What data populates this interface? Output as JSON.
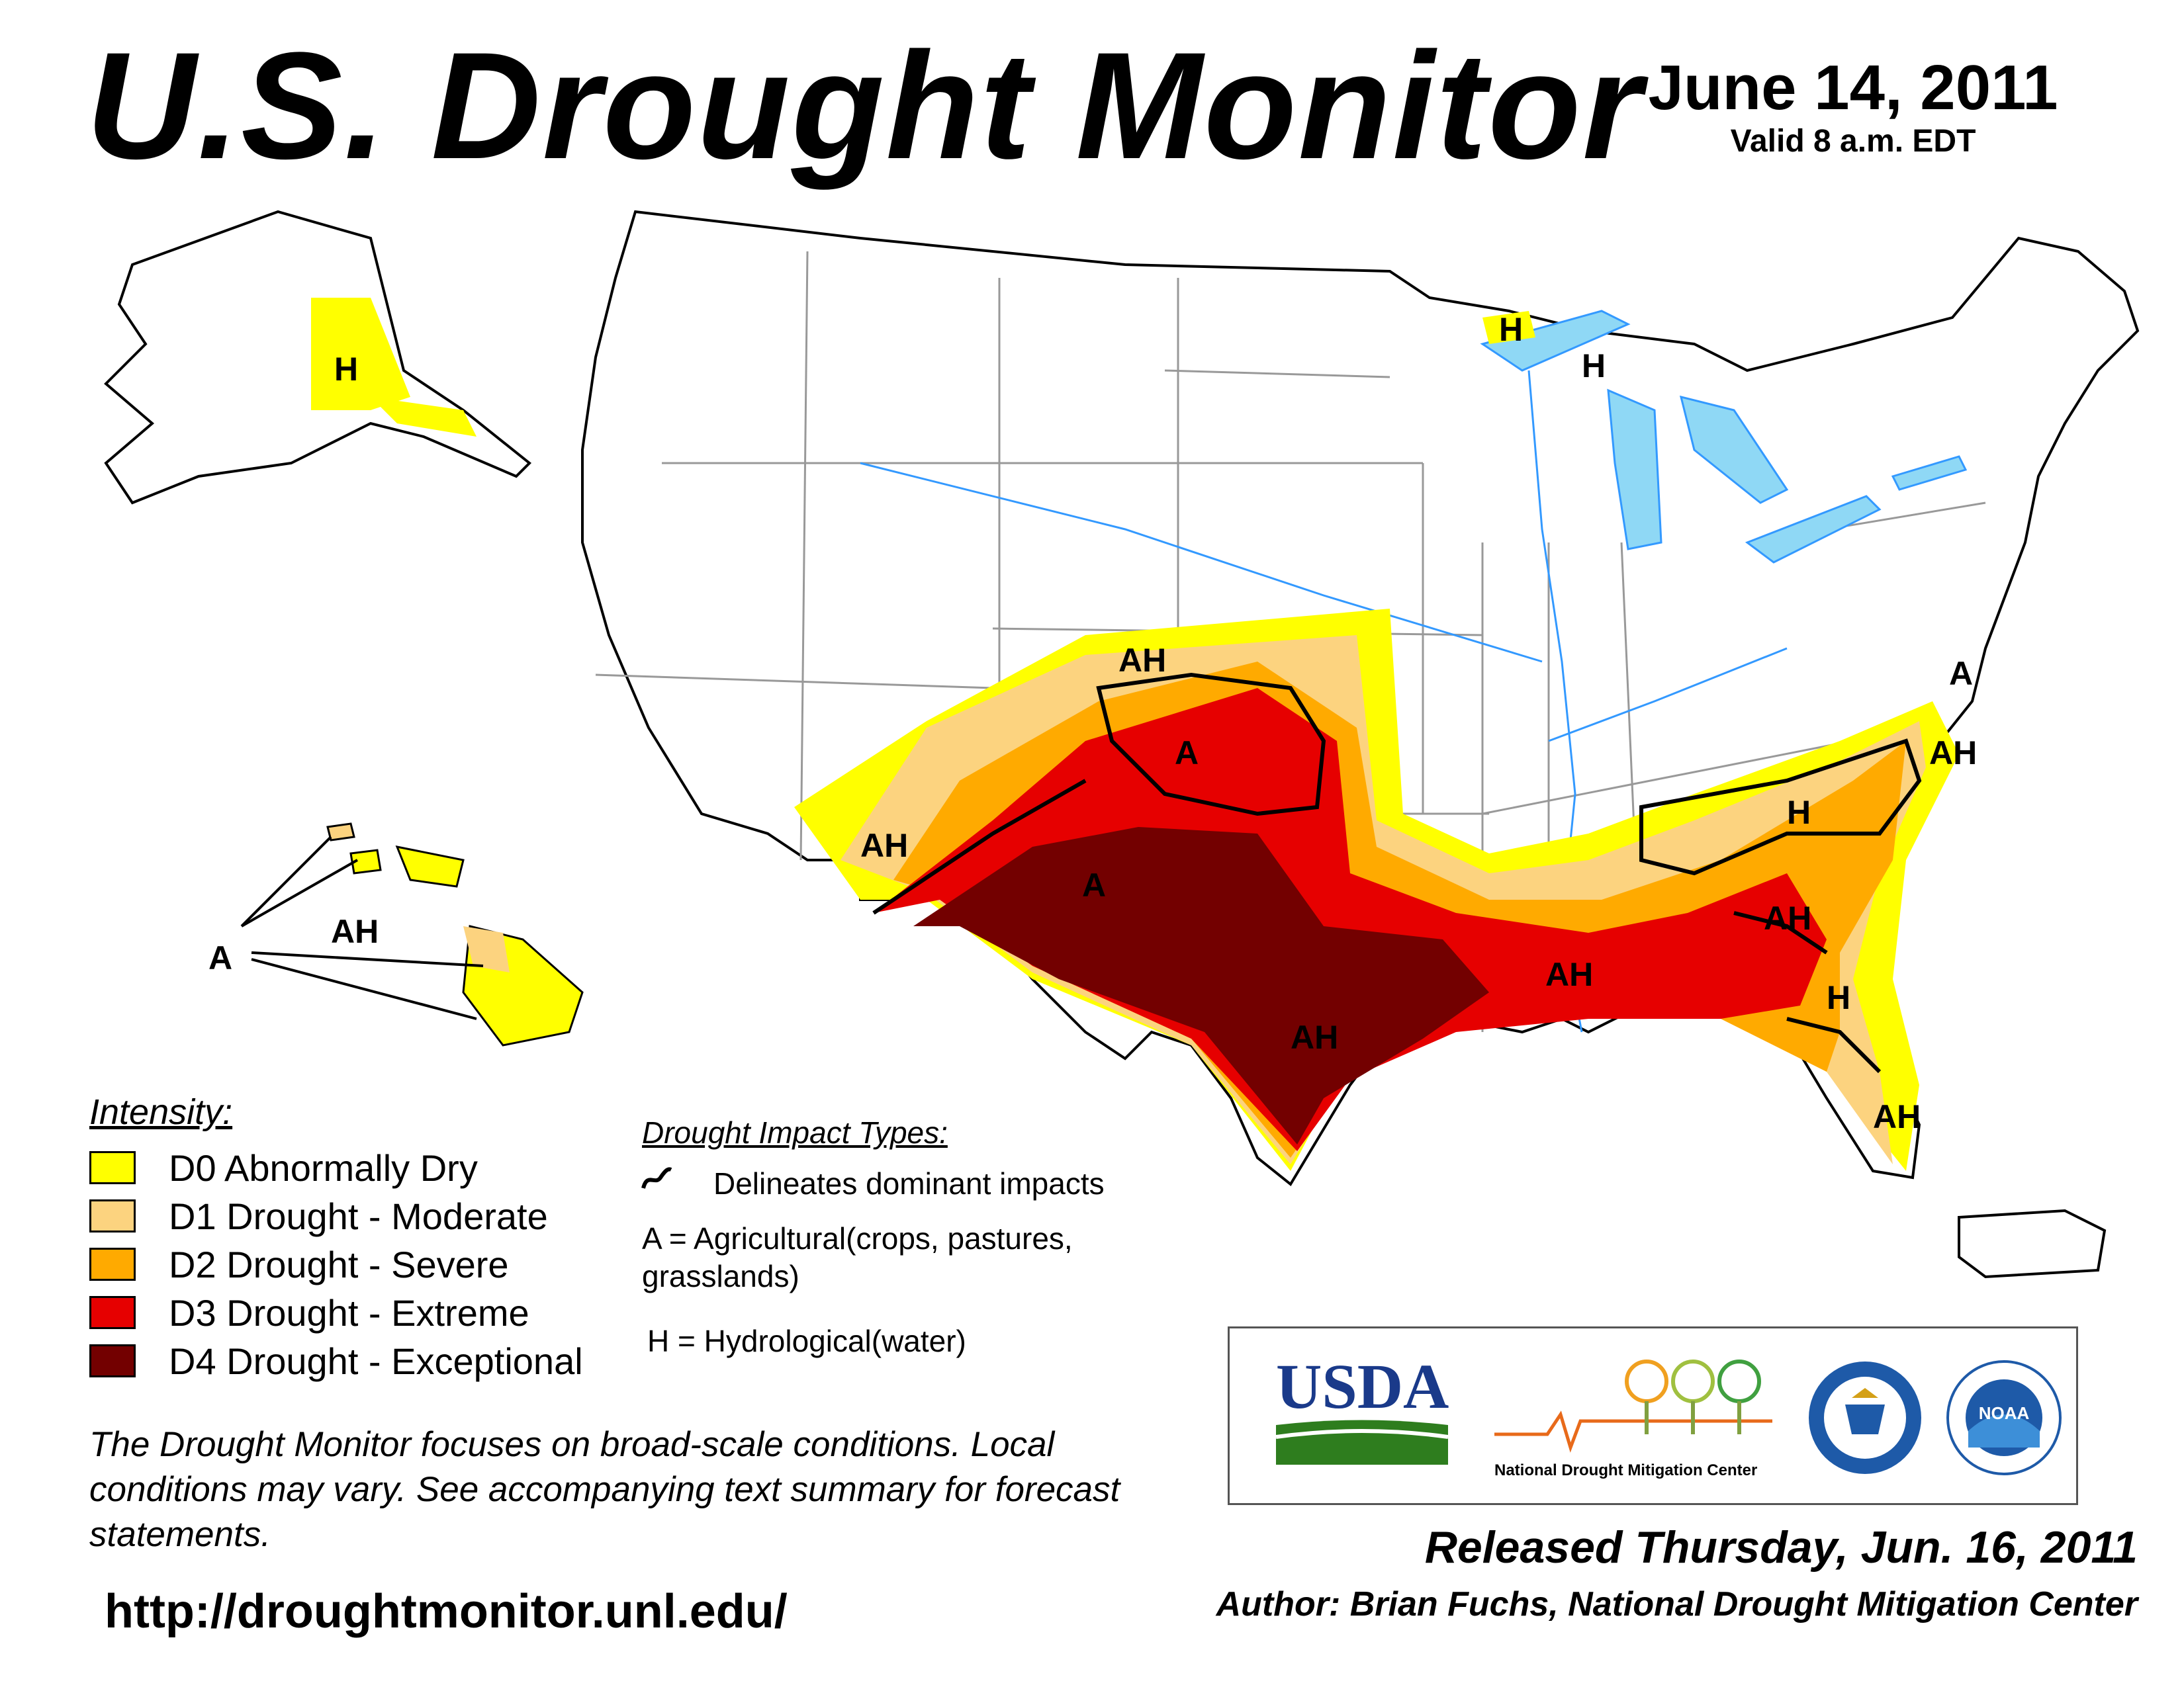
{
  "header": {
    "title": "U.S. Drought Monitor",
    "date": "June 14, 2011",
    "valid": "Valid 8 a.m. EDT"
  },
  "colors": {
    "D0": "#ffff00",
    "D1": "#fcd37f",
    "D2": "#ffaa00",
    "D3": "#e60000",
    "D4": "#730000",
    "water": "#8fd8f5",
    "river": "#3399ff",
    "boundary": "#999999"
  },
  "legend": {
    "title": "Intensity:",
    "items": [
      {
        "code": "D0",
        "label": "D0 Abnormally Dry"
      },
      {
        "code": "D1",
        "label": "D1 Drought - Moderate"
      },
      {
        "code": "D2",
        "label": "D2 Drought - Severe"
      },
      {
        "code": "D3",
        "label": "D3 Drought - Extreme"
      },
      {
        "code": "D4",
        "label": "D4 Drought - Exceptional"
      }
    ]
  },
  "impacts": {
    "title": "Drought Impact Types:",
    "delineates": "Delineates dominant impacts",
    "agricultural_1": "A = Agricultural(crops, pastures,",
    "agricultural_2": "grasslands)",
    "hydrological": "H = Hydrological(water)"
  },
  "map_labels": {
    "alaska_h": "H",
    "hawaii_a": "A",
    "hawaii_ah": "AH",
    "southwest_ah": "AH",
    "colorado_ah": "AH",
    "kansas_a": "A",
    "newmexico_a": "A",
    "texas_ah": "AH",
    "louisiana_ah": "AH",
    "georgia_ah": "AH",
    "florida_h": "H",
    "florida_ah": "AH",
    "carolina_h": "H",
    "northcarolina_ah": "AH",
    "delmarva_a": "A",
    "minnesota_h": "H",
    "michigan_h": "H"
  },
  "note": "The Drought Monitor focuses on broad-scale conditions. Local conditions may vary. See accompanying text summary for forecast statements.",
  "url": "http://droughtmonitor.unl.edu/",
  "logos": {
    "usda": "USDA",
    "ndmc": "National Drought Mitigation Center",
    "noaa": "NOAA"
  },
  "released": "Released Thursday, Jun. 16, 2011",
  "author": "Author: Brian Fuchs, National Drought Mitigation Center"
}
